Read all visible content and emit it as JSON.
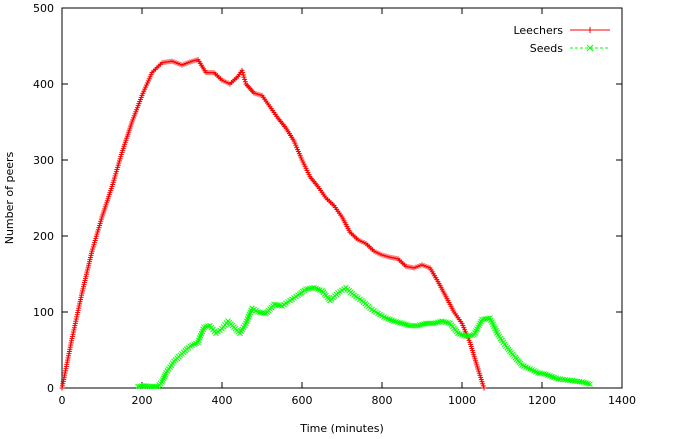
{
  "chart_data": {
    "type": "line",
    "title": "",
    "xlabel": "Time (minutes)",
    "ylabel": "Number of peers",
    "xlim": [
      0,
      1400
    ],
    "ylim": [
      0,
      500
    ],
    "xticks": [
      0,
      200,
      400,
      600,
      800,
      1000,
      1200,
      1400
    ],
    "yticks": [
      0,
      100,
      200,
      300,
      400,
      500
    ],
    "grid": false,
    "legend_position": "top-right",
    "series": [
      {
        "name": "Leechers",
        "color": "#ff0000",
        "marker": "plus",
        "x": [
          0,
          25,
          50,
          75,
          100,
          125,
          150,
          175,
          200,
          225,
          250,
          275,
          300,
          325,
          340,
          360,
          380,
          400,
          420,
          440,
          450,
          460,
          480,
          500,
          520,
          540,
          560,
          580,
          600,
          620,
          640,
          660,
          680,
          700,
          720,
          740,
          760,
          780,
          800,
          820,
          840,
          860,
          880,
          900,
          920,
          940,
          960,
          980,
          1000,
          1020,
          1040,
          1055
        ],
        "y": [
          0,
          65,
          125,
          180,
          225,
          265,
          310,
          350,
          385,
          415,
          428,
          430,
          425,
          430,
          432,
          415,
          415,
          405,
          400,
          410,
          418,
          400,
          388,
          385,
          370,
          355,
          342,
          325,
          300,
          278,
          265,
          250,
          240,
          225,
          205,
          195,
          190,
          180,
          175,
          172,
          170,
          160,
          158,
          162,
          158,
          140,
          120,
          100,
          85,
          60,
          25,
          0
        ]
      },
      {
        "name": "Seeds",
        "color": "#00ff00",
        "marker": "cross",
        "x": [
          190,
          205,
          220,
          240,
          250,
          260,
          280,
          300,
          320,
          340,
          355,
          370,
          385,
          400,
          415,
          430,
          445,
          460,
          475,
          490,
          510,
          530,
          550,
          570,
          590,
          610,
          630,
          650,
          670,
          690,
          710,
          730,
          750,
          770,
          790,
          810,
          830,
          850,
          870,
          890,
          910,
          930,
          950,
          970,
          990,
          1010,
          1030,
          1050,
          1070,
          1090,
          1110,
          1130,
          1150,
          1170,
          1190,
          1210,
          1240,
          1270,
          1300,
          1320
        ],
        "y": [
          2,
          3,
          2,
          2,
          8,
          20,
          35,
          45,
          55,
          60,
          80,
          82,
          72,
          78,
          88,
          80,
          72,
          85,
          105,
          100,
          98,
          110,
          108,
          115,
          122,
          130,
          132,
          128,
          115,
          125,
          132,
          122,
          115,
          105,
          98,
          92,
          88,
          85,
          82,
          82,
          85,
          85,
          88,
          85,
          72,
          68,
          70,
          90,
          92,
          70,
          55,
          42,
          30,
          25,
          20,
          18,
          12,
          10,
          8,
          5
        ]
      }
    ]
  }
}
